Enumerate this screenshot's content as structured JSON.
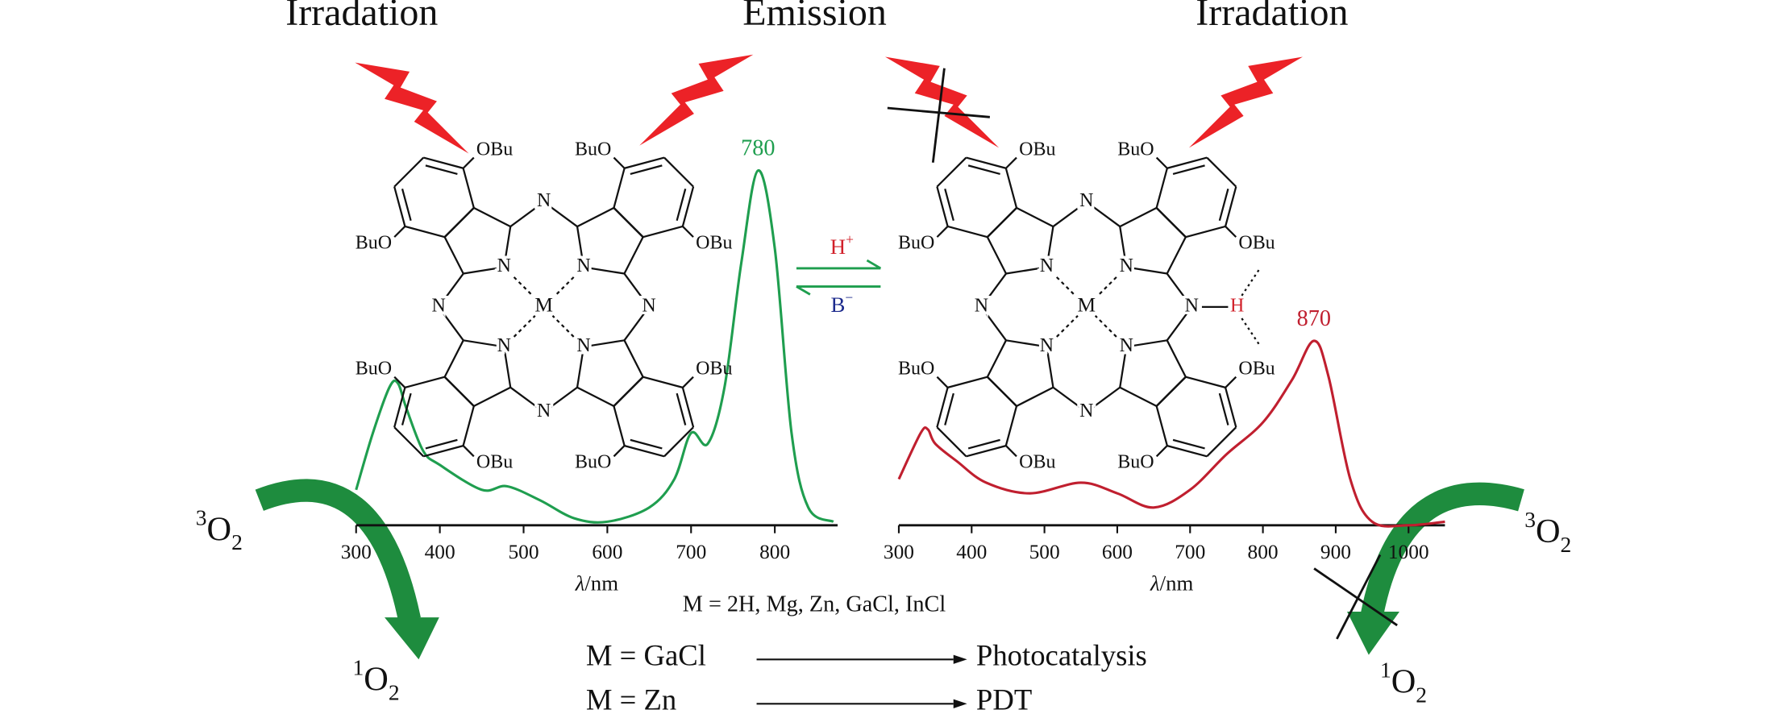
{
  "title_labels": [
    "Irradation",
    "Emission",
    "Irradation"
  ],
  "chart_data": [
    {
      "type": "line",
      "color": "#1f9e4f",
      "x": [
        300,
        320,
        340,
        350,
        360,
        380,
        400,
        450,
        480,
        520,
        560,
        600,
        650,
        680,
        700,
        720,
        740,
        760,
        780,
        800,
        820,
        840,
        870
      ],
      "values": [
        0.1,
        0.26,
        0.39,
        0.4,
        0.33,
        0.21,
        0.17,
        0.1,
        0.11,
        0.07,
        0.02,
        0.01,
        0.05,
        0.13,
        0.26,
        0.23,
        0.39,
        0.74,
        1.0,
        0.78,
        0.26,
        0.05,
        0.01
      ],
      "xlim": [
        300,
        875
      ],
      "ylim": [
        0,
        1
      ],
      "xticks": [
        300,
        400,
        500,
        600,
        700,
        800
      ],
      "x_label": {
        "symbol": "λ",
        "unit": "/nm"
      },
      "annotation": 780
    },
    {
      "type": "line",
      "color": "#c01f2f",
      "x": [
        300,
        330,
        340,
        350,
        380,
        420,
        480,
        550,
        600,
        650,
        700,
        750,
        800,
        840,
        870,
        890,
        920,
        950,
        1000,
        1050
      ],
      "values": [
        0.13,
        0.26,
        0.27,
        0.23,
        0.18,
        0.12,
        0.09,
        0.12,
        0.09,
        0.05,
        0.1,
        0.2,
        0.29,
        0.41,
        0.52,
        0.42,
        0.13,
        0.01,
        0,
        0.01
      ],
      "xlim": [
        300,
        1050
      ],
      "ylim": [
        0,
        1
      ],
      "xticks": [
        300,
        400,
        500,
        600,
        700,
        800,
        900,
        1000
      ],
      "x_label": {
        "symbol": "λ",
        "unit": "/nm"
      },
      "annotation": 870
    }
  ],
  "molecules": [
    {
      "substituents": [
        "OBu",
        "BuO",
        "OBu",
        "BuO",
        "BuO",
        "OBu",
        "BuO",
        "OBu"
      ],
      "meso_nitrogens": [
        "N",
        "N",
        "N",
        "N"
      ],
      "core_nitrogens": [
        "N",
        "N",
        "N",
        "N"
      ],
      "metal": "M"
    },
    {
      "substituents": [
        "OBu",
        "BuO",
        "OBu",
        "BuO",
        "BuO",
        "OBu",
        "BuO",
        "OBu"
      ],
      "meso_nitrogens": [
        "N",
        "N",
        "N",
        "N"
      ],
      "core_nitrogens": [
        "N",
        "N",
        "N",
        "N"
      ],
      "metal": "M",
      "hydrogen": "H"
    }
  ],
  "equilibrium": {
    "forward": {
      "base": "H",
      "sup": "+"
    },
    "backward": {
      "base": "B",
      "sup": "−"
    }
  },
  "metals": "M = 2H, Mg, Zn, GaCl, InCl",
  "applications": [
    {
      "metal": "M = GaCl",
      "use": "Photocatalysis"
    },
    {
      "metal": "M = Zn",
      "use": "PDT"
    }
  ],
  "oxygen": [
    {
      "sup": "3",
      "base": "O",
      "sub": "2"
    },
    {
      "sup": "1",
      "base": "O",
      "sub": "2"
    },
    {
      "sup": "3",
      "base": "O",
      "sub": "2"
    },
    {
      "sup": "1",
      "base": "O",
      "sub": "2"
    }
  ]
}
